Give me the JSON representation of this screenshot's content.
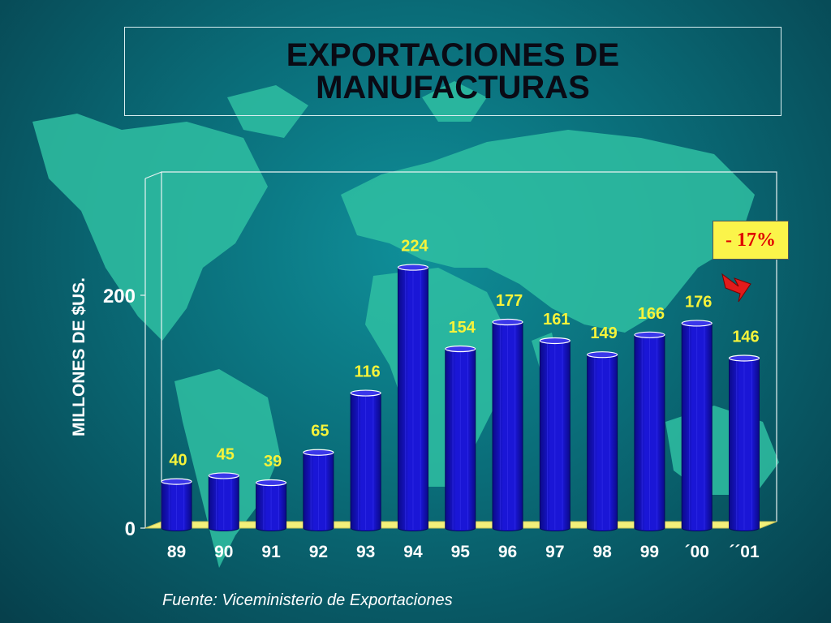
{
  "chart_data": {
    "type": "bar",
    "title": "EXPORTACIONES DE MANUFACTURAS",
    "ylabel": "MILLONES DE $US.",
    "xlabel": "",
    "categories": [
      "89",
      "90",
      "91",
      "92",
      "93",
      "94",
      "95",
      "96",
      "97",
      "98",
      "99",
      "´00",
      "´´01"
    ],
    "values": [
      40,
      45,
      39,
      65,
      116,
      224,
      154,
      177,
      161,
      149,
      166,
      176,
      146
    ],
    "yticks": [
      "0",
      "200"
    ],
    "ylim": [
      0,
      300
    ],
    "grid": false,
    "annotation": "- 17%",
    "source": "Fuente: Viceministerio de Exportaciones",
    "colors": {
      "bar": "#1a16d6",
      "bar_dark": "#0b0a8a",
      "value_label": "#f6f33a",
      "floor": "#f3f07a",
      "annotation_bg": "#fbf44a",
      "annotation_text": "#e00000",
      "arrow": "#e21b1b"
    }
  }
}
